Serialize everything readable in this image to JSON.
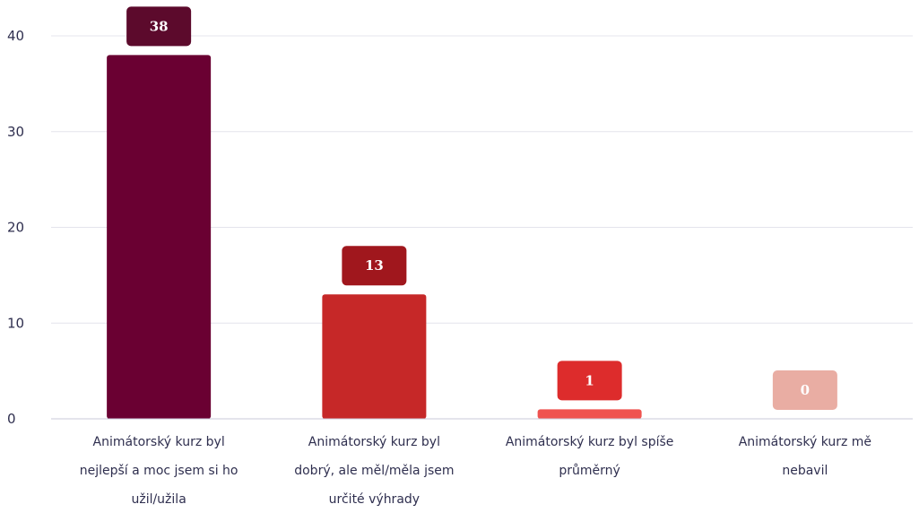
{
  "chart_data": {
    "type": "bar",
    "categories": [
      [
        "Animátorský kurz byl",
        "nejlepší a moc jsem si ho",
        "užil/užila"
      ],
      [
        "Animátorský kurz byl",
        "dobrý, ale měl/měla jsem",
        "určité výhrady"
      ],
      [
        "Animátorský kurz byl spíše",
        "průměrný"
      ],
      [
        "Animátorský kurz mě",
        "nebavil"
      ]
    ],
    "values": [
      38,
      13,
      1,
      0
    ],
    "bar_colors": [
      "#6a0032",
      "#c62828",
      "#ef5350",
      "#f2b7ae"
    ],
    "label_colors": [
      "#5c0a2c",
      "#a0171d",
      "#dd2c2c",
      "#e9ada3"
    ],
    "ylim": [
      0,
      40
    ],
    "yticks": [
      0,
      10,
      20,
      30,
      40
    ],
    "grid": true,
    "title": "",
    "xlabel": "",
    "ylabel": ""
  }
}
